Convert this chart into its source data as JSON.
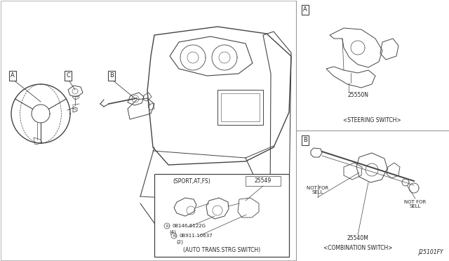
{
  "bg_color": "#f0ede8",
  "fig_code": "J25101FY",
  "part_A_part_number": "25550N",
  "part_A_name": "<STEERING SWITCH>",
  "part_B_part_number": "25540M",
  "part_B_name": "<COMBINATION SWITCH>",
  "part_B_nfs1": "NOT FOR\nSELL",
  "part_B_nfs2": "NOT FOR\nSELL",
  "part_C_condition": "(SPORT,AT,FS)",
  "part_C_part_number": "25549",
  "part_C_fastener1": "08146-6122G",
  "part_C_fastener1_qty": "(4)",
  "part_C_fastener2": "0B911-10637",
  "part_C_fastener2_qty": "(2)",
  "part_C_name": "(AUTO TRANS.STRG SWITCH)",
  "lc": "#444444",
  "tc": "#222222",
  "divider": "#999999",
  "white": "#ffffff"
}
